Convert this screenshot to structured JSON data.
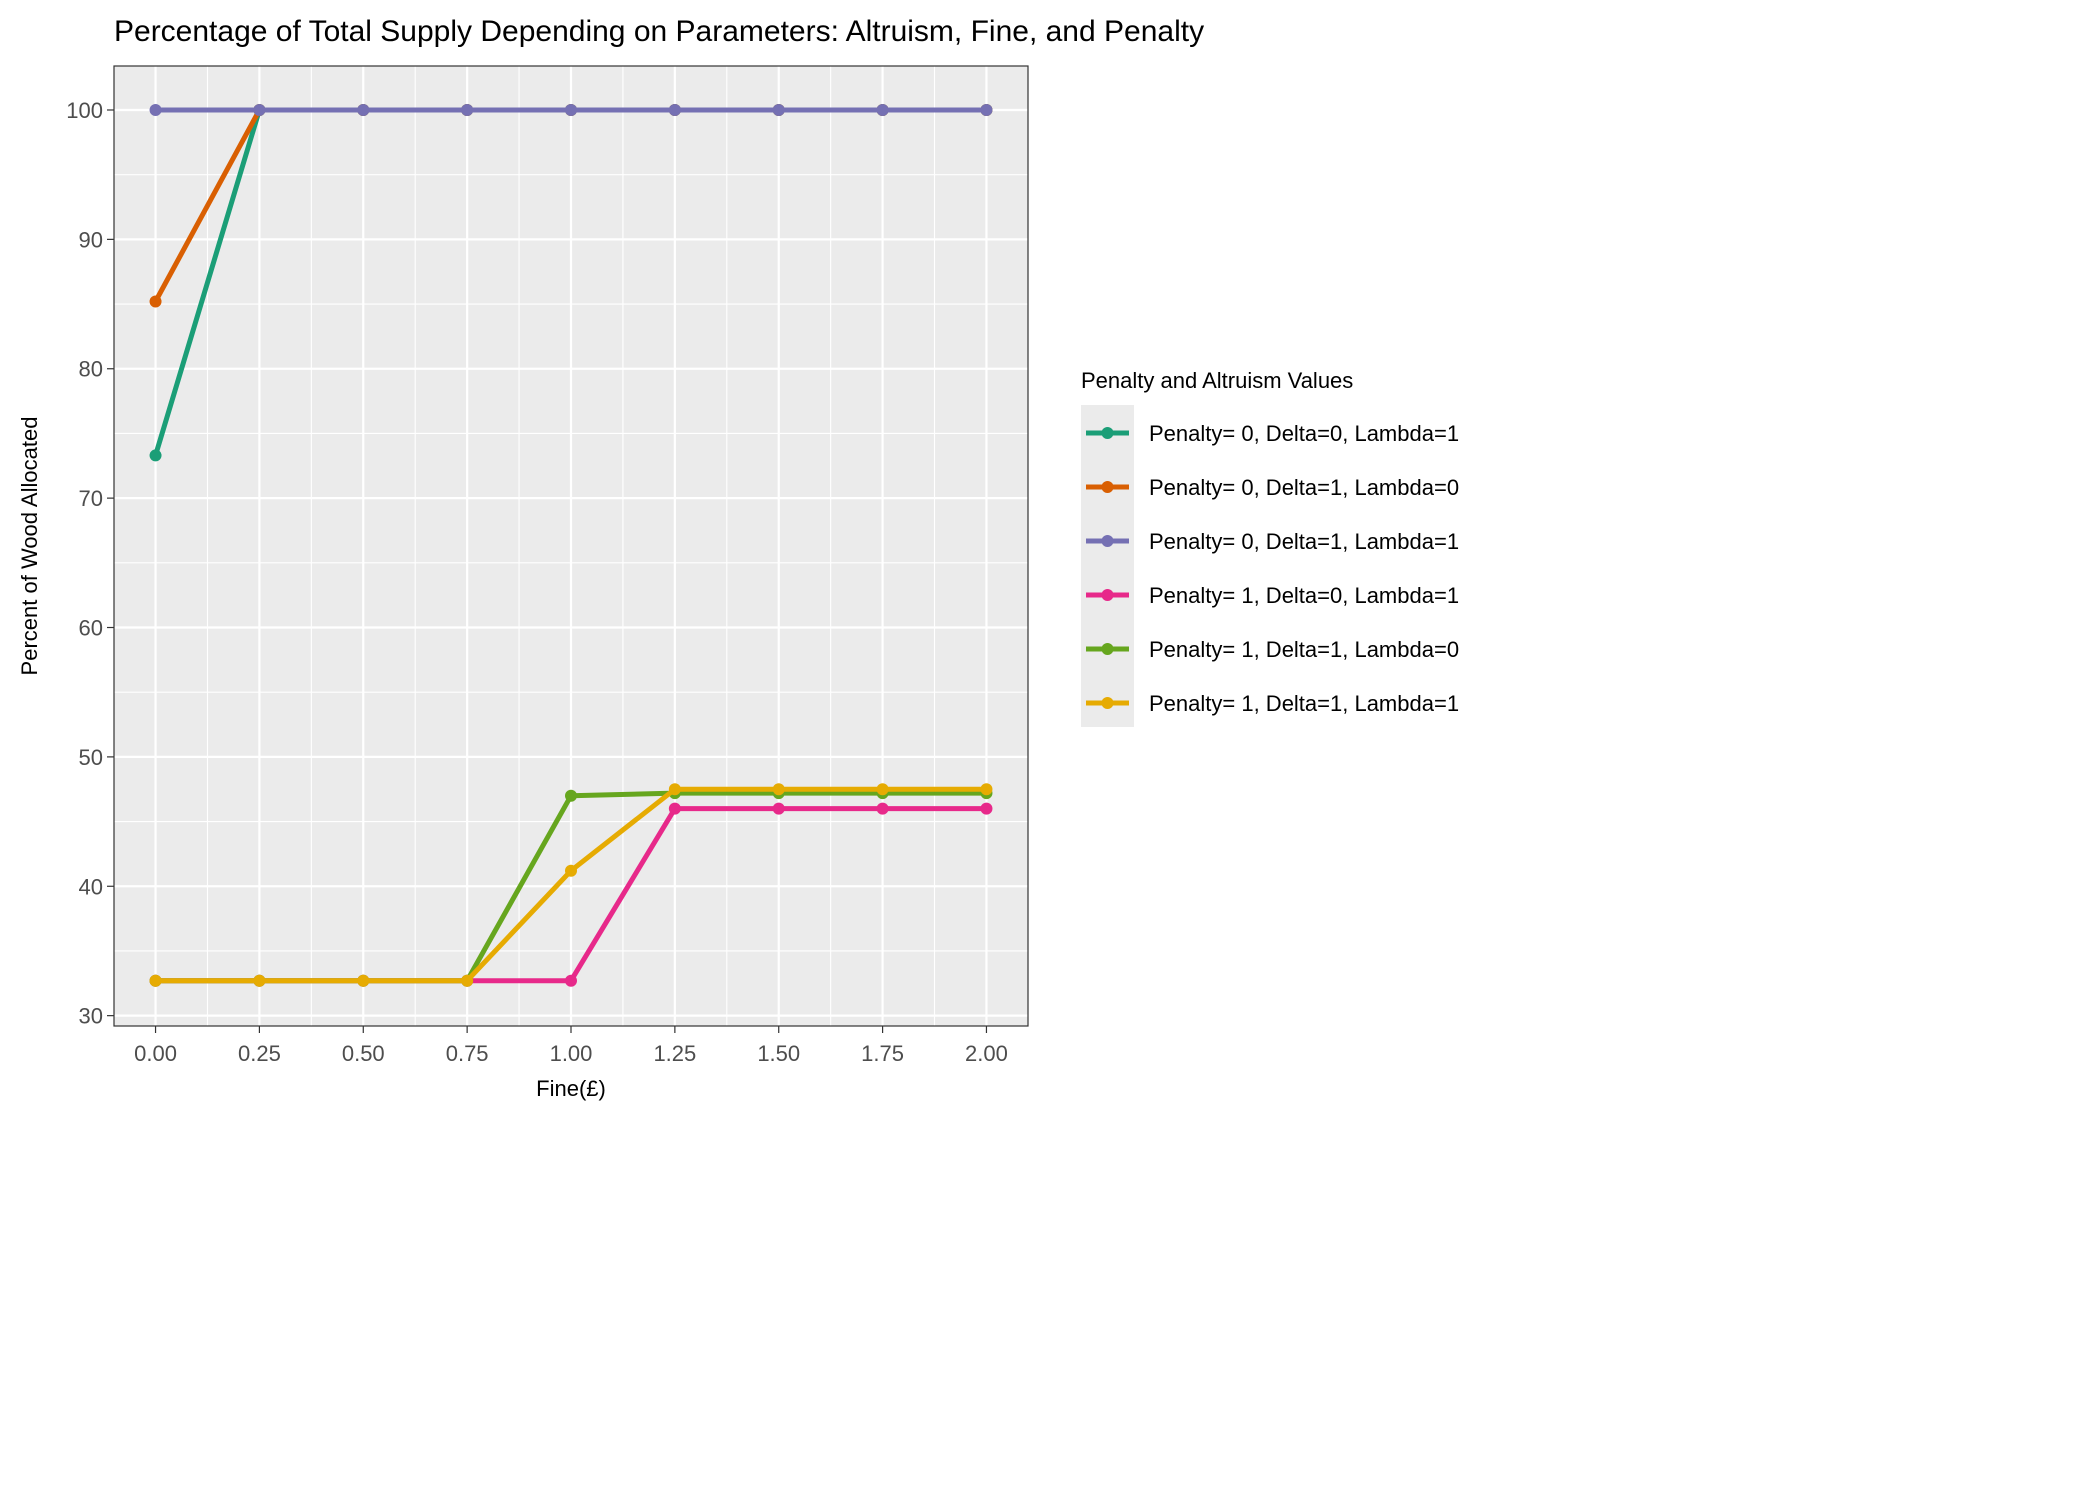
{
  "chart_data": {
    "type": "line",
    "title": "Percentage of Total Supply Depending on Parameters: Altruism, Fine, and Penalty",
    "xlabel": "Fine(£)",
    "ylabel": "Percent of Wood Allocated",
    "x": [
      0,
      0.25,
      0.5,
      0.75,
      1,
      1.25,
      1.5,
      1.75,
      2
    ],
    "x_tick_labels": [
      "0.00",
      "0.25",
      "0.50",
      "0.75",
      "1.00",
      "1.25",
      "1.50",
      "1.75",
      "2.00"
    ],
    "y_ticks": [
      30,
      40,
      50,
      60,
      70,
      80,
      90,
      100
    ],
    "xlim": [
      -0.1,
      2.1
    ],
    "ylim": [
      29.2,
      103.4
    ],
    "grid": true,
    "legend_title": "Penalty and Altruism Values",
    "legend_position": "right",
    "series": [
      {
        "name": "Penalty= 0, Delta=0, Lambda=1",
        "color": "#1b9e77",
        "values": [
          73.3,
          100,
          100,
          100,
          100,
          100,
          100,
          100,
          100
        ]
      },
      {
        "name": "Penalty= 0, Delta=1, Lambda=0",
        "color": "#d95f02",
        "values": [
          85.2,
          100,
          100,
          100,
          100,
          100,
          100,
          100,
          100
        ]
      },
      {
        "name": "Penalty= 0, Delta=1, Lambda=1",
        "color": "#7570b3",
        "values": [
          100,
          100,
          100,
          100,
          100,
          100,
          100,
          100,
          100
        ]
      },
      {
        "name": "Penalty= 1, Delta=0, Lambda=1",
        "color": "#e7298a",
        "values": [
          32.7,
          32.7,
          32.7,
          32.7,
          32.7,
          46.0,
          46.0,
          46.0,
          46.0
        ]
      },
      {
        "name": "Penalty= 1, Delta=1, Lambda=0",
        "color": "#66a61e",
        "values": [
          32.7,
          32.7,
          32.7,
          32.7,
          47.0,
          47.2,
          47.2,
          47.2,
          47.2
        ]
      },
      {
        "name": "Penalty= 1, Delta=1, Lambda=1",
        "color": "#e6ab02",
        "values": [
          32.7,
          32.7,
          32.7,
          32.7,
          41.2,
          47.5,
          47.5,
          47.5,
          47.5
        ]
      }
    ]
  }
}
